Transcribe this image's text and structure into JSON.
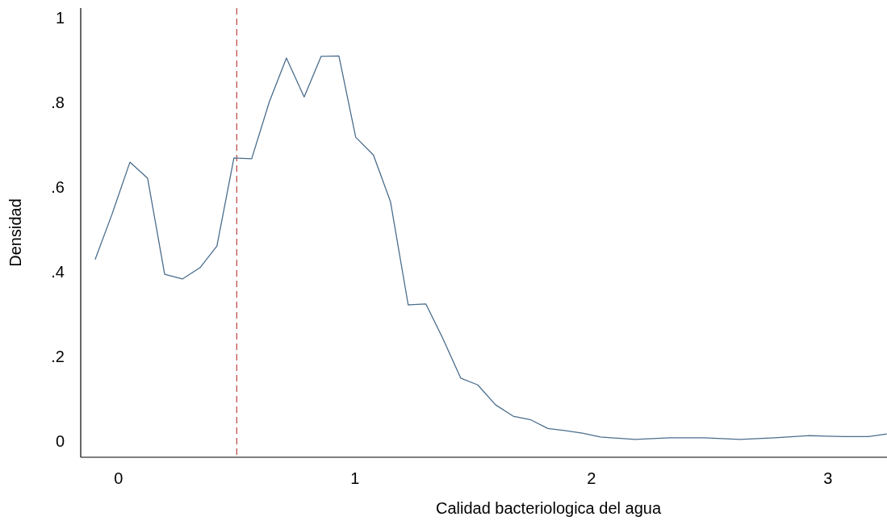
{
  "chart_data": {
    "type": "line",
    "xlabel": "Calidad bacteriologica del agua",
    "ylabel": "Densidad",
    "xlim": [
      -0.16,
      3.25
    ],
    "ylim": [
      -0.038,
      1.023
    ],
    "xticks": [
      0,
      1,
      2,
      3
    ],
    "yticks": [
      0,
      {
        "value": 0.2,
        "label": ".2"
      },
      {
        "value": 0.4,
        "label": ".4"
      },
      {
        "value": 0.6,
        "label": ".6"
      },
      {
        "value": 0.8,
        "label": ".8"
      },
      1
    ],
    "grid": false,
    "marker": "none",
    "line_style": "solid",
    "ref_lines": [
      {
        "axis": "x",
        "value": 0.5,
        "color": "#c0504d",
        "line_style": "dashed"
      }
    ],
    "series": [
      {
        "color": "#4a6d8c",
        "x": [
          -0.099,
          -0.027,
          0.048,
          0.123,
          0.195,
          0.27,
          0.345,
          0.416,
          0.488,
          0.563,
          0.638,
          0.71,
          0.785,
          0.857,
          0.932,
          1.003,
          1.078,
          1.15,
          1.225,
          1.3,
          1.372,
          1.447,
          1.519,
          1.594,
          1.669,
          1.741,
          1.816,
          1.887,
          1.962,
          2.038,
          2.184,
          2.331,
          2.478,
          2.628,
          2.775,
          2.922,
          3.068,
          3.171,
          3.249
        ],
        "values": [
          0.429,
          0.537,
          0.659,
          0.621,
          0.394,
          0.383,
          0.41,
          0.461,
          0.669,
          0.667,
          0.802,
          0.905,
          0.813,
          0.909,
          0.91,
          0.718,
          0.676,
          0.566,
          0.322,
          0.324,
          0.242,
          0.149,
          0.133,
          0.086,
          0.059,
          0.051,
          0.03,
          0.025,
          0.019,
          0.01,
          0.004,
          0.008,
          0.008,
          0.004,
          0.008,
          0.013,
          0.011,
          0.011,
          0.017
        ]
      }
    ]
  }
}
